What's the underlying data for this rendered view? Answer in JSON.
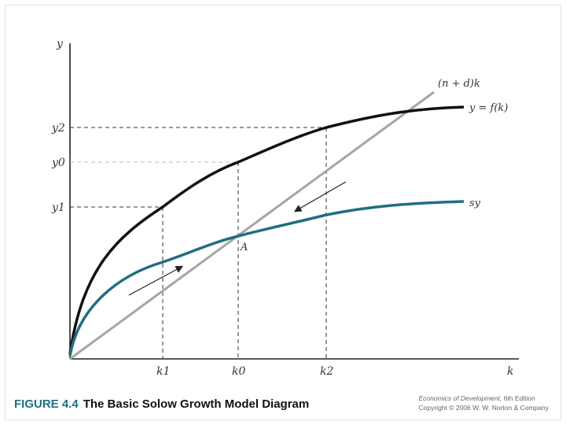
{
  "title": "The Basic Solow Growth Model Diagram",
  "figure_number": "FIGURE 4.4",
  "credit": {
    "book": "Economics of Development,",
    "edition": "6th Edition",
    "copyright": "Copyright © 2006 W. W. Norton & Company"
  },
  "axes": {
    "x_label": "k",
    "y_label": "y"
  },
  "ticks": {
    "k1": "k1",
    "k0": "k0",
    "k2": "k2",
    "y1": "y1",
    "y0": "y0",
    "y2": "y2"
  },
  "labels": {
    "depreciation_line": "(n + d)k",
    "production_curve": "y = f(k)",
    "savings_curve": "sy",
    "steady_state_point": "A"
  },
  "colors": {
    "production_curve": "#111111",
    "savings_curve": "#1f6f80",
    "depreciation_line": "#a5a5a5",
    "axis": "#222222",
    "guide": "#333333"
  },
  "chart_data": {
    "type": "line",
    "title": "The Basic Solow Growth Model Diagram",
    "xlabel": "k",
    "ylabel": "y",
    "x_ticks": [
      "k1",
      "k0",
      "k2"
    ],
    "y_ticks": [
      "y1",
      "y0",
      "y2"
    ],
    "series": [
      {
        "name": "y = f(k)",
        "shape": "concave, rising then flattening"
      },
      {
        "name": "sy",
        "shape": "concave, below f(k)"
      },
      {
        "name": "(n + d)k",
        "shape": "straight line from origin"
      }
    ],
    "annotations": [
      "A",
      "arrow toward A from k1",
      "arrow toward A from k2"
    ]
  }
}
